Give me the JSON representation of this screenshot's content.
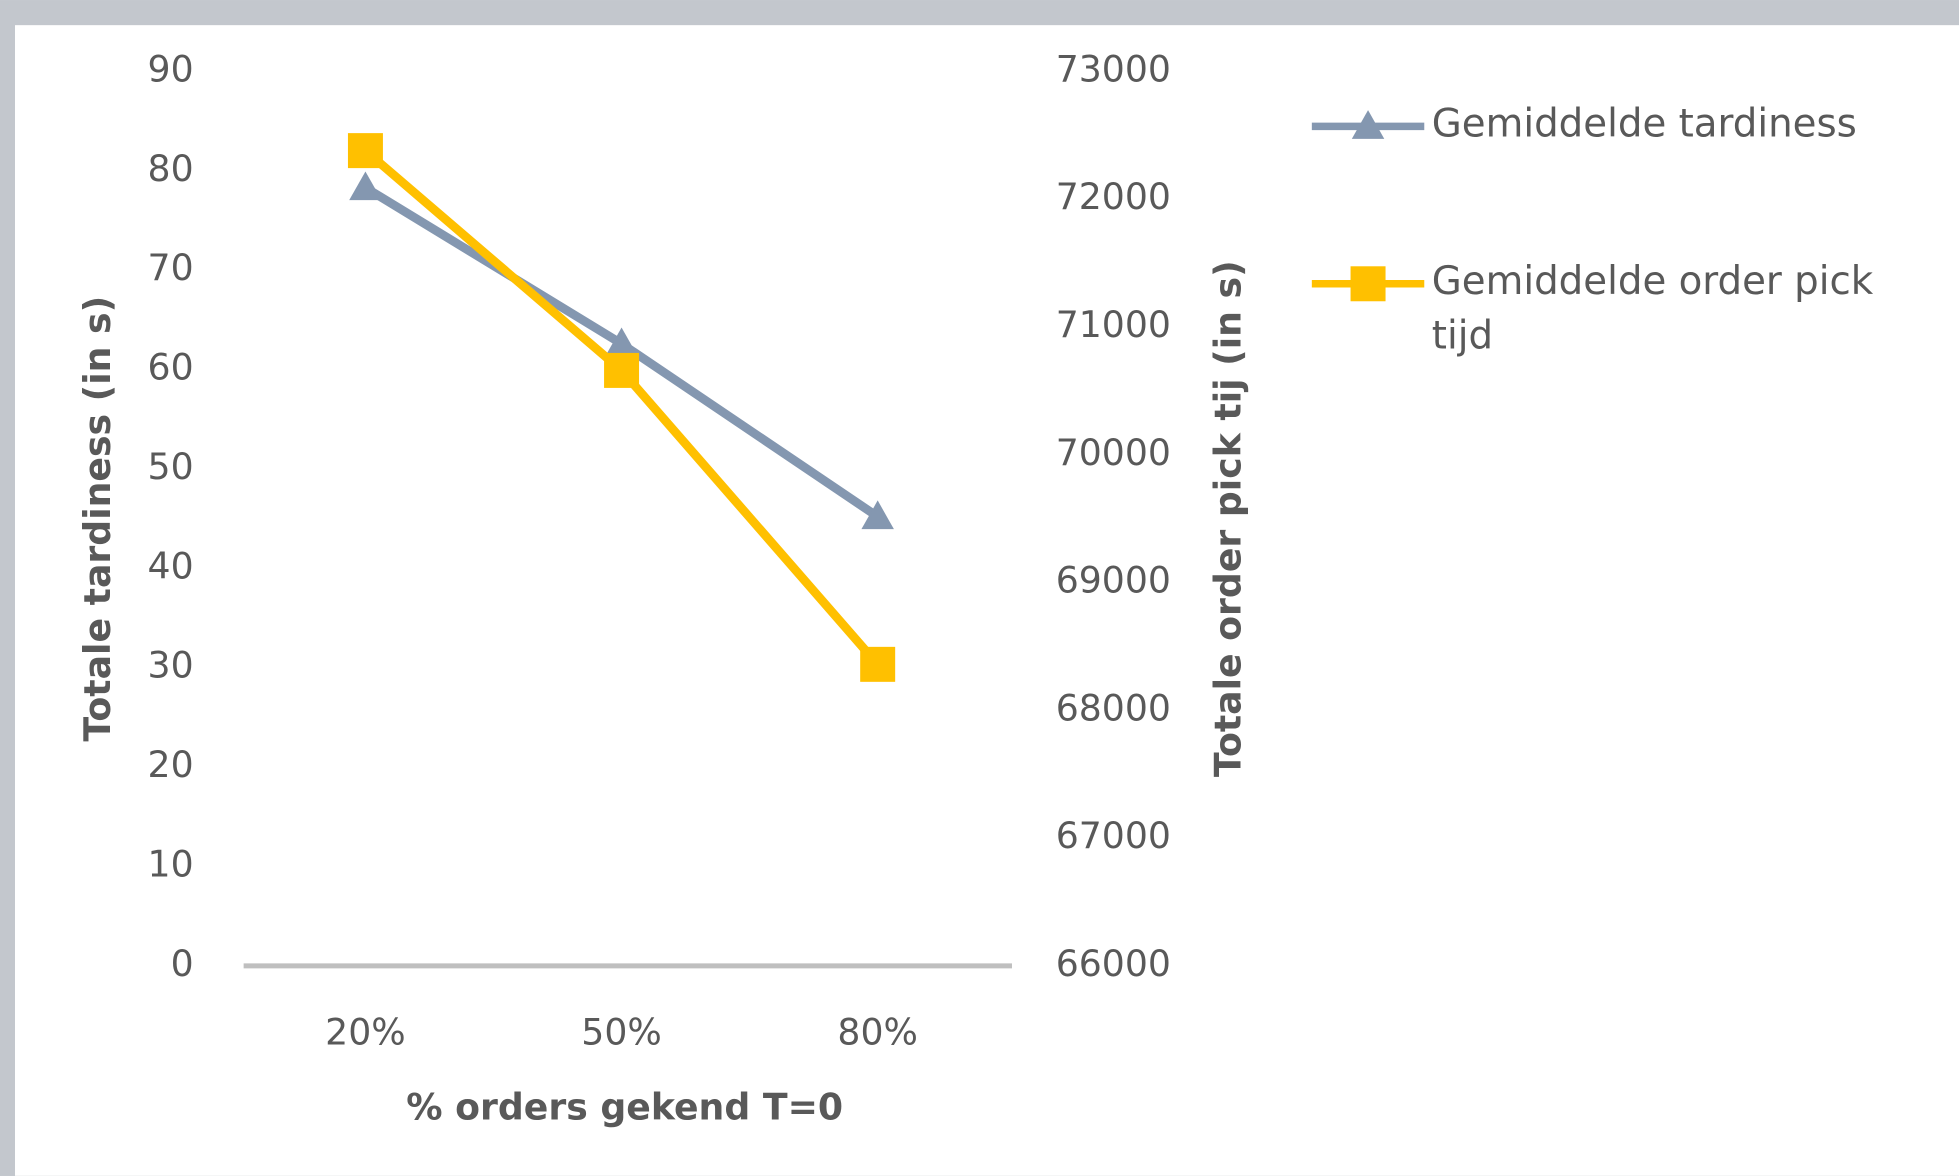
{
  "chart_data": {
    "type": "line",
    "x_label": "% orders gekend T=0",
    "y_label": "Totale tardiness (in s)",
    "y2_label": "Totale order pick tij (in s)",
    "categories": [
      "20%",
      "50%",
      "80%"
    ],
    "ylim": [
      0,
      90
    ],
    "yticks": [
      0,
      10,
      20,
      30,
      40,
      50,
      60,
      70,
      80,
      90
    ],
    "y2lim": [
      66000,
      73000
    ],
    "y2ticks": [
      66000,
      67000,
      68000,
      69000,
      70000,
      71000,
      72000,
      73000
    ],
    "grid": false,
    "legend": "right",
    "series": [
      {
        "name": "Gemiddelde tardiness",
        "color": "#8497b0",
        "marker": "triangle",
        "values": [
          78.3,
          62.6,
          45.2
        ]
      },
      {
        "name": "Gemiddelde order pick tijd",
        "color": "#ffc000",
        "marker": "square",
        "axis": "y2",
        "values": [
          72380,
          70660,
          68360
        ]
      }
    ]
  }
}
